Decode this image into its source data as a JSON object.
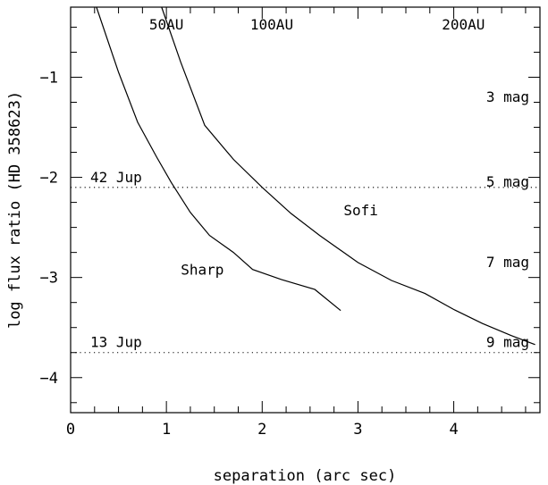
{
  "chart_data": {
    "type": "line",
    "xlabel": "separation (arc sec)",
    "ylabel": "log flux ratio (HD 358623)",
    "xlim": [
      0,
      4.9
    ],
    "ylim": [
      -4.35,
      -0.3
    ],
    "grid": false,
    "x_ticks": [
      0,
      1,
      2,
      3,
      4
    ],
    "x_tick_labels": [
      "0",
      "1",
      "2",
      "3",
      "4"
    ],
    "y_ticks": [
      -1,
      -2,
      -3,
      -4
    ],
    "y_tick_labels": [
      "−1",
      "−2",
      "−3",
      "−4"
    ],
    "series": [
      {
        "name": "Sharp",
        "x": [
          0.27,
          0.5,
          0.7,
          0.9,
          1.05,
          1.25,
          1.45,
          1.7,
          1.9,
          2.2,
          2.55,
          2.82
        ],
        "y": [
          -0.3,
          -0.95,
          -1.45,
          -1.8,
          -2.05,
          -2.35,
          -2.58,
          -2.75,
          -2.92,
          -3.02,
          -3.12,
          -3.33
        ]
      },
      {
        "name": "Sofi",
        "x": [
          0.95,
          1.15,
          1.4,
          1.7,
          2.0,
          2.3,
          2.6,
          3.0,
          3.35,
          3.7,
          4.0,
          4.3,
          4.6,
          4.85
        ],
        "y": [
          -0.3,
          -0.85,
          -1.48,
          -1.82,
          -2.1,
          -2.36,
          -2.58,
          -2.85,
          -3.03,
          -3.16,
          -3.32,
          -3.46,
          -3.58,
          -3.67
        ]
      }
    ],
    "reference_lines": [
      {
        "y": -2.1,
        "label": "42 Jup",
        "style": "dotted"
      },
      {
        "y": -3.75,
        "label": "13 Jup",
        "style": "dotted"
      }
    ],
    "top_annotations": [
      {
        "x": 1.0,
        "label": "50AU"
      },
      {
        "x": 2.1,
        "label": "100AU"
      },
      {
        "x": 4.1,
        "label": "200AU"
      }
    ],
    "magnitude_labels": [
      {
        "y": -1.2,
        "label": "3 mag"
      },
      {
        "y": -2.05,
        "label": "5 mag"
      },
      {
        "y": -2.85,
        "label": "7 mag"
      },
      {
        "y": -3.65,
        "label": "9 mag"
      }
    ],
    "series_labels": [
      {
        "name": "Sharp",
        "x": 1.15,
        "y": -2.97
      },
      {
        "name": "Sofi",
        "x": 2.85,
        "y": -2.38
      }
    ]
  }
}
